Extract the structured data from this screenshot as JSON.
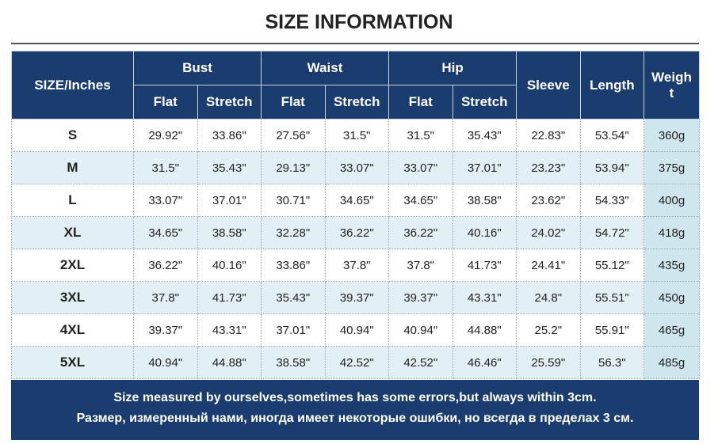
{
  "title": "SIZE INFORMATION",
  "table": {
    "size_label": "SIZE/Inches",
    "groups": [
      "Bust",
      "Waist",
      "Hip"
    ],
    "sub_labels": [
      "Flat",
      "Stretch",
      "Flat",
      "Stretch",
      "Flat",
      "Stretch"
    ],
    "single_labels": [
      "Sleeve",
      "Length",
      "Weight"
    ],
    "rows": [
      [
        "S",
        "29.92\"",
        "33.86\"",
        "27.56\"",
        "31.5\"",
        "31.5\"",
        "35.43\"",
        "22.83\"",
        "53.54\"",
        "360g"
      ],
      [
        "M",
        "31.5\"",
        "35.43\"",
        "29.13\"",
        "33.07\"",
        "33.07\"",
        "37.01\"",
        "23.23\"",
        "53.94\"",
        "375g"
      ],
      [
        "L",
        "33.07\"",
        "37.01\"",
        "30.71\"",
        "34.65\"",
        "34.65\"",
        "38.58\"",
        "23.62\"",
        "54.33\"",
        "400g"
      ],
      [
        "XL",
        "34.65\"",
        "38.58\"",
        "32.28\"",
        "36.22\"",
        "36.22\"",
        "40.16\"",
        "24.02\"",
        "54.72\"",
        "418g"
      ],
      [
        "2XL",
        "36.22\"",
        "40.16\"",
        "33.86\"",
        "37.8\"",
        "37.8\"",
        "41.73\"",
        "24.41\"",
        "55.12\"",
        "435g"
      ],
      [
        "3XL",
        "37.8\"",
        "41.73\"",
        "35.43\"",
        "39.37\"",
        "39.37\"",
        "43.31\"",
        "24.8\"",
        "55.51\"",
        "450g"
      ],
      [
        "4XL",
        "39.37\"",
        "43.31\"",
        "37.01\"",
        "40.94\"",
        "40.94\"",
        "44.88\"",
        "25.2\"",
        "55.91\"",
        "465g"
      ],
      [
        "5XL",
        "40.94\"",
        "44.88\"",
        "38.58\"",
        "42.52\"",
        "42.52\"",
        "46.46\"",
        "25.59\"",
        "56.3\"",
        "485g"
      ]
    ]
  },
  "footer": {
    "lines": [
      "Size measured by ourselves,sometimes has some errors,but always within 3cm.",
      "Размер, измеренный нами, иногда имеет некоторые ошибки, но всегда в пределах 3 см."
    ]
  }
}
